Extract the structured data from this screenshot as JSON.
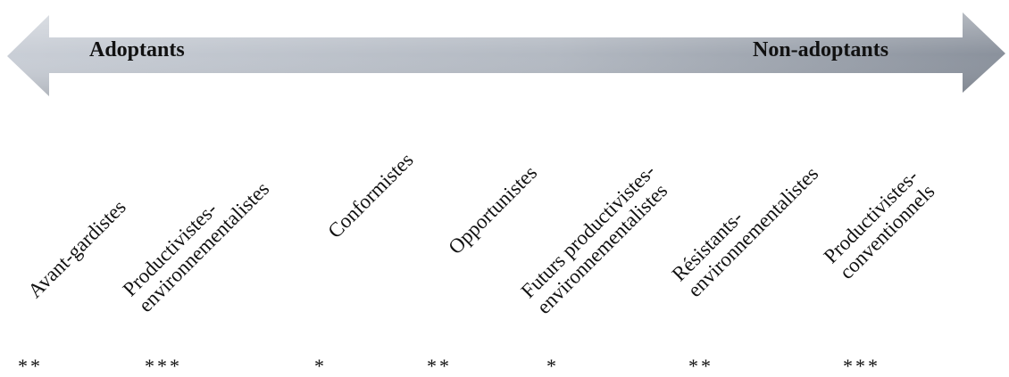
{
  "arrow": {
    "left_label": "Adoptants",
    "right_label": "Non-adoptants",
    "gradient_start": "#c9ced6",
    "gradient_end": "#8a919c"
  },
  "groups": [
    {
      "name": "Avant-gardistes",
      "lines": [
        "Avant-gardistes"
      ],
      "stars": "**"
    },
    {
      "name": "Productivistes-environnementalistes",
      "lines": [
        "Productivistes-",
        "environnementalistes"
      ],
      "stars": "***"
    },
    {
      "name": "Conformistes",
      "lines": [
        "Conformistes"
      ],
      "stars": "*"
    },
    {
      "name": "Opportunistes",
      "lines": [
        "Opportunistes"
      ],
      "stars": "**"
    },
    {
      "name": "Futurs productivistes-environnementalistes",
      "lines": [
        "Futurs productivistes-",
        "environnementalistes"
      ],
      "stars": "*"
    },
    {
      "name": "Résistants-environnementalistes",
      "lines": [
        "Résistants-",
        "environnementalistes"
      ],
      "stars": "**"
    },
    {
      "name": "Productivistes-conventionnels",
      "lines": [
        "Productivistes-",
        "conventionnels"
      ],
      "stars": "***"
    }
  ]
}
